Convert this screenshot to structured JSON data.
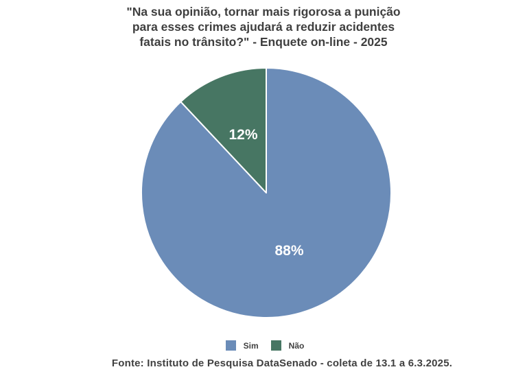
{
  "title": {
    "lines": [
      "\"Na sua opinião, tornar mais rigorosa a punição",
      "para esses crimes ajudará a reduzir acidentes",
      "fatais no trânsito?\" - Enquete on-line - 2025"
    ]
  },
  "chart_data": {
    "type": "pie",
    "title": "\"Na sua opinião, tornar mais rigorosa a punição para esses crimes ajudará a reduzir acidentes fatais no trânsito?\" - Enquete on-line - 2025",
    "categories": [
      "Sim",
      "Não"
    ],
    "values": [
      88,
      12
    ],
    "data_labels": [
      "88%",
      "12%"
    ],
    "colors": [
      "#6b8cb8",
      "#477663"
    ],
    "data_label_color": "#ffffff",
    "slice_stroke_color": "#ffffff",
    "start_angle_deg": 0,
    "direction": "clockwise",
    "legend_position": "bottom"
  },
  "legend": {
    "items": [
      {
        "label": "Sim",
        "color": "#6b8cb8"
      },
      {
        "label": "Não",
        "color": "#477663"
      }
    ]
  },
  "footer": {
    "source": "Fonte: Instituto de Pesquisa DataSenado - coleta de 13.1 a 6.3.2025."
  }
}
